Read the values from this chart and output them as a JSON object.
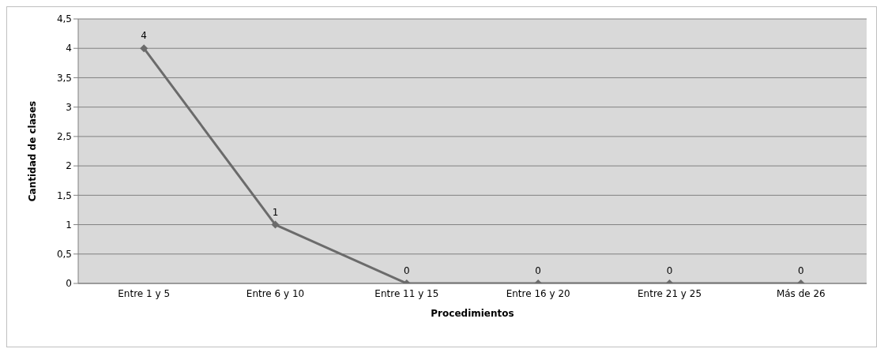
{
  "chart_data": {
    "type": "line",
    "xlabel": "Procedimientos",
    "ylabel": "Cantidad de clases",
    "categories": [
      "Entre 1 y 5",
      "Entre 6 y 10",
      "Entre 11 y 15",
      "Entre 16 y 20",
      "Entre 21 y 25",
      "Más de 26"
    ],
    "series": [
      {
        "color": "#6b6b6b",
        "values": [
          4,
          1,
          0,
          0,
          0,
          0
        ]
      }
    ],
    "ylim": [
      0,
      4.5
    ],
    "yticks": [
      0,
      {
        "value": 0.5,
        "label": "0,5"
      },
      1,
      {
        "value": 1.5,
        "label": "1,5"
      },
      2,
      {
        "value": 2.5,
        "label": "2,5"
      },
      3,
      {
        "value": 3.5,
        "label": "3,5"
      },
      4,
      {
        "value": 4.5,
        "label": "4,5"
      }
    ],
    "grid": "y",
    "marker": "diamond",
    "line_style": "solid",
    "data_labels": true
  }
}
